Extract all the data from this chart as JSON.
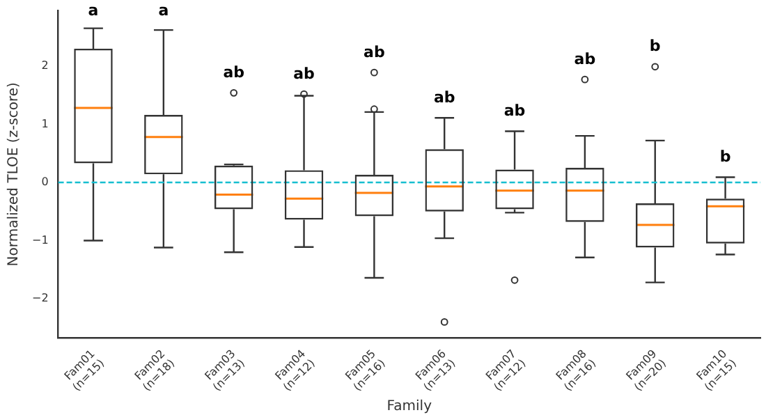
{
  "chart_data": {
    "type": "box",
    "xlabel": "Family",
    "ylabel": "Normalized TLOE (z-score)",
    "categories": [
      "Fam01\n(n=15)",
      "Fam02\n(n=18)",
      "Fam03\n(n=13)",
      "Fam04\n(n=12)",
      "Fam05\n(n=16)",
      "Fam06\n(n=13)",
      "Fam07\n(n=12)",
      "Fam08\n(n=16)",
      "Fam09\n(n=20)",
      "Fam10\n(n=15)"
    ],
    "boxes": [
      {
        "low": -1.0,
        "q1": 0.33,
        "median": 1.28,
        "q3": 2.3,
        "high": 2.65
      },
      {
        "low": -1.12,
        "q1": 0.14,
        "median": 0.78,
        "q3": 1.16,
        "high": 2.62
      },
      {
        "low": -1.2,
        "q1": -0.46,
        "median": -0.21,
        "q3": 0.29,
        "high": 0.31,
        "outliers": [
          1.54
        ]
      },
      {
        "low": -1.11,
        "q1": -0.64,
        "median": -0.28,
        "q3": 0.21,
        "high": 1.49,
        "outliers": [
          1.52
        ]
      },
      {
        "low": -1.64,
        "q1": -0.58,
        "median": -0.18,
        "q3": 0.13,
        "high": 1.21,
        "outliers": [
          1.26,
          1.89
        ]
      },
      {
        "low": -0.96,
        "q1": -0.5,
        "median": -0.07,
        "q3": 0.57,
        "high": 1.11,
        "outliers": [
          -2.4
        ]
      },
      {
        "low": -0.52,
        "q1": -0.46,
        "median": -0.14,
        "q3": 0.22,
        "high": 0.88,
        "outliers": [
          -1.68
        ]
      },
      {
        "low": -1.29,
        "q1": -0.68,
        "median": -0.14,
        "q3": 0.25,
        "high": 0.8,
        "outliers": [
          1.77
        ]
      },
      {
        "low": -1.72,
        "q1": -1.12,
        "median": -0.73,
        "q3": -0.36,
        "high": 0.72,
        "outliers": [
          1.99
        ]
      },
      {
        "low": -1.24,
        "q1": -1.05,
        "median": -0.41,
        "q3": -0.28,
        "high": 0.09
      }
    ],
    "color": "#333333",
    "ylim": [
      -2.67,
      2.95
    ],
    "yticks": [
      -2,
      -1,
      0,
      1,
      2
    ],
    "grid": false,
    "legend": false,
    "marker": "circle",
    "ref_lines": [
      {
        "axis": "y",
        "value": 0,
        "color": "#17becf",
        "line_style": "dashed"
      }
    ],
    "annotations": [
      "a",
      "a",
      "ab",
      "ab",
      "ab",
      "ab",
      "ab",
      "ab",
      "b",
      "b"
    ]
  }
}
